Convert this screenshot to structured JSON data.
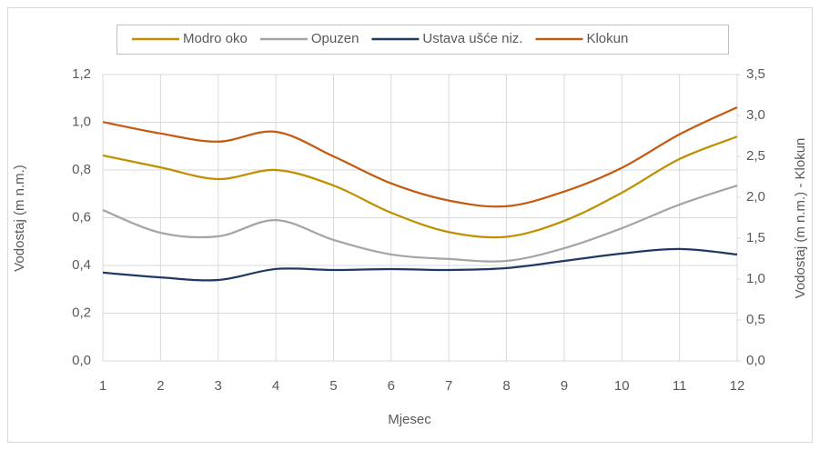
{
  "chart_data": {
    "type": "line",
    "smooth": true,
    "legend": "top",
    "grid": true,
    "xlabel": "Mjesec",
    "ylabel": "Vodostaj (m n.m.)",
    "y2label": "Vodostaj (m n.m.) - Klokun",
    "x": [
      1,
      2,
      3,
      4,
      5,
      6,
      7,
      8,
      9,
      10,
      11,
      12
    ],
    "xlim": [
      1,
      12
    ],
    "xticks": [
      1,
      2,
      3,
      4,
      5,
      6,
      7,
      8,
      9,
      10,
      11,
      12
    ],
    "ylim": [
      0,
      1.2
    ],
    "yticks": [
      {
        "value": 0,
        "label": "0,0"
      },
      {
        "value": 0.2,
        "label": "0,2"
      },
      {
        "value": 0.4,
        "label": "0,4"
      },
      {
        "value": 0.6,
        "label": "0,6"
      },
      {
        "value": 0.8,
        "label": "0,8"
      },
      {
        "value": 1.0,
        "label": "1,0"
      },
      {
        "value": 1.2,
        "label": "1,2"
      }
    ],
    "y2lim": [
      0,
      3.5
    ],
    "y2ticks": [
      {
        "value": 0,
        "label": "0,0"
      },
      {
        "value": 0.5,
        "label": "0,5"
      },
      {
        "value": 1.0,
        "label": "1,0"
      },
      {
        "value": 1.5,
        "label": "1,5"
      },
      {
        "value": 2.0,
        "label": "2,0"
      },
      {
        "value": 2.5,
        "label": "2,5"
      },
      {
        "value": 3.0,
        "label": "3,0"
      },
      {
        "value": 3.5,
        "label": "3,5"
      }
    ],
    "series": [
      {
        "name": "Modro oko",
        "color": "#BF9000",
        "values": [
          0.861,
          0.811,
          0.762,
          0.8,
          0.735,
          0.621,
          0.54,
          0.52,
          0.587,
          0.705,
          0.846,
          0.94
        ]
      },
      {
        "name": "Opuzen",
        "color": "#A5A5A5",
        "values": [
          0.632,
          0.537,
          0.522,
          0.59,
          0.507,
          0.446,
          0.427,
          0.419,
          0.472,
          0.556,
          0.655,
          0.735
        ]
      },
      {
        "name": "Ustava ušće niz.",
        "color": "#203864",
        "values": [
          0.37,
          0.35,
          0.339,
          0.385,
          0.381,
          0.385,
          0.381,
          0.389,
          0.419,
          0.45,
          0.469,
          0.446
        ]
      },
      {
        "name": "Klokun",
        "color": "#C55A11",
        "axis": "y2",
        "values": [
          2.92,
          2.78,
          2.68,
          2.8,
          2.5,
          2.17,
          1.96,
          1.89,
          2.07,
          2.36,
          2.77,
          3.1
        ]
      }
    ]
  }
}
